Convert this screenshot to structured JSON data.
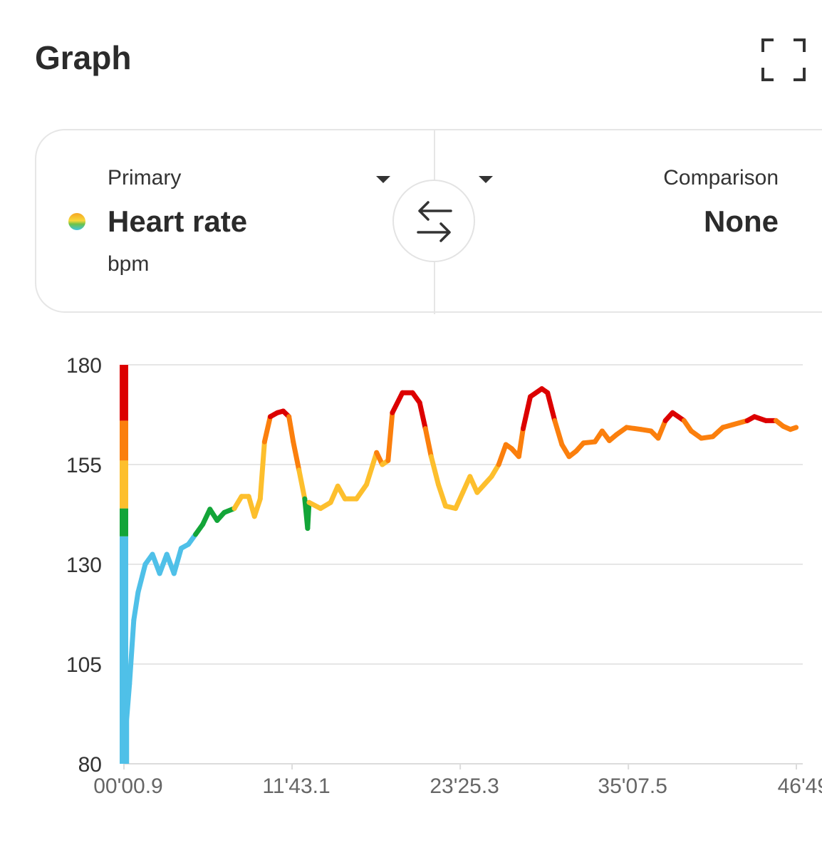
{
  "header": {
    "title": "Graph",
    "fullscreen_icon": "fullscreen-icon"
  },
  "selector": {
    "primary": {
      "label": "Primary",
      "value": "Heart rate",
      "unit": "bpm",
      "icon": "zone-gradient-dot"
    },
    "comparison": {
      "label": "Comparison",
      "value": "None"
    },
    "swap_icon": "swap-arrows-icon",
    "dropdown_icon": "caret-down-icon"
  },
  "chart_data": {
    "type": "line",
    "ylim": [
      80,
      180
    ],
    "yticks": [
      "180",
      "155",
      "130",
      "105",
      "80"
    ],
    "yticks_values": [
      180,
      155,
      130,
      105,
      80
    ],
    "xticks": [
      "00'00.9",
      "11'43.1",
      "23'25.3",
      "35'07.5",
      "46'49."
    ],
    "xticks_minutes": [
      0.015,
      11.718,
      23.422,
      35.125,
      46.817
    ],
    "grid": true,
    "zones": [
      {
        "min": 80,
        "max": 137,
        "color": "#4fc0e8"
      },
      {
        "min": 137,
        "max": 144,
        "color": "#13a538"
      },
      {
        "min": 144,
        "max": 156,
        "color": "#fdbf2d"
      },
      {
        "min": 156,
        "max": 166,
        "color": "#fb7f0d"
      },
      {
        "min": 166,
        "max": 180,
        "color": "#dc0000"
      }
    ],
    "x_minutes": [
      0.2,
      0.4,
      0.7,
      1.0,
      1.5,
      2.0,
      2.5,
      3.0,
      3.5,
      4.0,
      4.5,
      5.0,
      5.5,
      6.0,
      6.5,
      7.0,
      7.7,
      8.2,
      8.7,
      9.1,
      9.5,
      9.8,
      10.2,
      10.7,
      11.1,
      11.5,
      11.8,
      12.2,
      12.6,
      12.8,
      12.9,
      13.7,
      14.4,
      14.9,
      15.4,
      16.2,
      16.9,
      17.6,
      18.0,
      18.4,
      18.7,
      19.4,
      20.1,
      20.6,
      21.0,
      21.4,
      21.9,
      22.4,
      23.1,
      23.6,
      24.1,
      24.6,
      25.1,
      25.6,
      26.1,
      26.6,
      27.0,
      27.5,
      27.8,
      28.3,
      29.1,
      29.5,
      30.0,
      30.5,
      31.0,
      31.5,
      32.0,
      32.8,
      33.3,
      33.8,
      34.3,
      35.0,
      36.0,
      36.7,
      37.2,
      37.7,
      38.2,
      39.0,
      39.5,
      40.2,
      41.0,
      41.7,
      42.4,
      43.4,
      43.9,
      44.7,
      45.4,
      45.9,
      46.4,
      46.8
    ],
    "y_bpm": [
      91,
      100,
      116,
      123,
      130,
      132.5,
      127.7,
      132.5,
      127.7,
      134,
      135,
      137.5,
      140,
      143.8,
      141,
      143,
      144,
      147,
      147,
      142,
      146.4,
      160.7,
      167,
      168,
      168.4,
      167,
      160.7,
      153.6,
      146.4,
      139,
      145.5,
      144,
      145.5,
      149.6,
      146.4,
      146.4,
      150,
      158,
      155,
      156,
      168,
      173,
      173,
      170.5,
      164,
      157,
      150,
      144.6,
      144,
      148,
      152,
      148,
      150,
      152,
      155,
      160,
      159,
      157,
      164,
      172,
      174,
      173,
      166,
      160,
      157,
      158.4,
      160.4,
      160.7,
      163.4,
      161,
      162.5,
      164.3,
      163.8,
      163.4,
      161.6,
      166,
      168,
      166,
      163.4,
      161.6,
      162,
      164.3,
      165,
      166,
      167,
      166,
      166,
      164.6,
      163.8,
      164.3
    ]
  }
}
